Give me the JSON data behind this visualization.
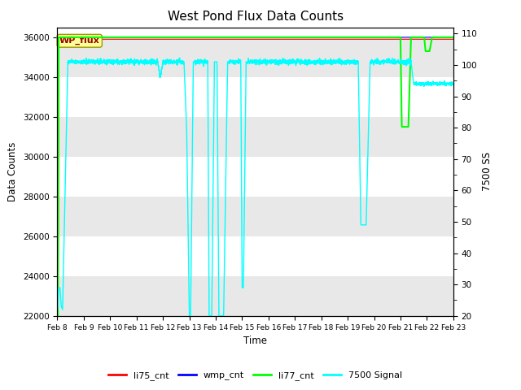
{
  "title": "West Pond Flux Data Counts",
  "ylabel_left": "Data Counts",
  "ylabel_right": "7500 SS",
  "xlabel": "Time",
  "ylim_left": [
    22000,
    36500
  ],
  "ylim_right": [
    20,
    112
  ],
  "yticks_left": [
    22000,
    24000,
    26000,
    28000,
    30000,
    32000,
    34000,
    36000
  ],
  "yticks_right": [
    20,
    30,
    40,
    50,
    60,
    70,
    80,
    90,
    100,
    110
  ],
  "xtick_labels": [
    "Feb 8",
    "Feb 9",
    "Feb 10",
    "Feb 11",
    "Feb 12",
    "Feb 13",
    "Feb 14",
    "Feb 15",
    "Feb 16",
    "Feb 17",
    "Feb 18",
    "Feb 19",
    "Feb 20",
    "Feb 21",
    "Feb 22",
    "Feb 23"
  ],
  "legend_labels": [
    "li75_cnt",
    "wmp_cnt",
    "li77_cnt",
    "7500 Signal"
  ],
  "legend_colors": [
    "#ff0000",
    "#0000ff",
    "#00ff00",
    "#00ffff"
  ],
  "wp_flux_box_color": "#ffff99",
  "wp_flux_text_color": "#990000",
  "background_color": "#ffffff",
  "grid_band_color": "#e8e8e8",
  "title_fontsize": 11
}
